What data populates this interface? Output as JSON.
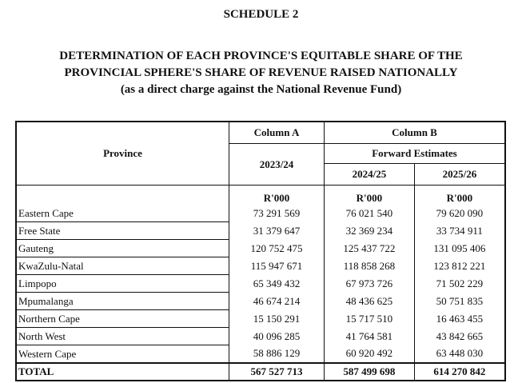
{
  "schedule": "SCHEDULE 2",
  "heading": {
    "line1": "DETERMINATION OF EACH PROVINCE'S EQUITABLE SHARE OF THE",
    "line2": "PROVINCIAL SPHERE'S SHARE OF REVENUE RAISED NATIONALLY",
    "line3": "(as a direct charge against the National Revenue Fund)"
  },
  "table": {
    "province_header": "Province",
    "col_a": {
      "title": "Column A",
      "year": "2023/24"
    },
    "col_b": {
      "title": "Column B",
      "subtitle": "Forward Estimates",
      "year1": "2024/25",
      "year2": "2025/26"
    },
    "units": [
      "R'000",
      "R'000",
      "R'000"
    ],
    "rows": [
      {
        "province": "Eastern Cape",
        "a": "73 291 569",
        "b1": "76 021 540",
        "b2": "79 620 090"
      },
      {
        "province": "Free State",
        "a": "31 379 647",
        "b1": "32 369 234",
        "b2": "33 734 911"
      },
      {
        "province": "Gauteng",
        "a": "120 752 475",
        "b1": "125 437 722",
        "b2": "131 095 406"
      },
      {
        "province": "KwaZulu-Natal",
        "a": "115 947 671",
        "b1": "118 858 268",
        "b2": "123 812 221"
      },
      {
        "province": "Limpopo",
        "a": "65 349 432",
        "b1": "67 973 726",
        "b2": "71 502 229"
      },
      {
        "province": "Mpumalanga",
        "a": "46 674 214",
        "b1": "48 436 625",
        "b2": "50 751 835"
      },
      {
        "province": "Northern Cape",
        "a": "15 150 291",
        "b1": "15 717 510",
        "b2": "16 463 455"
      },
      {
        "province": "North West",
        "a": "40 096 285",
        "b1": "41 764 581",
        "b2": "43 842 665"
      },
      {
        "province": "Western Cape",
        "a": "58 886 129",
        "b1": "60 920 492",
        "b2": "63 448 030"
      }
    ],
    "total": {
      "label": "TOTAL",
      "a": "567 527 713",
      "b1": "587 499 698",
      "b2": "614 270 842"
    }
  }
}
